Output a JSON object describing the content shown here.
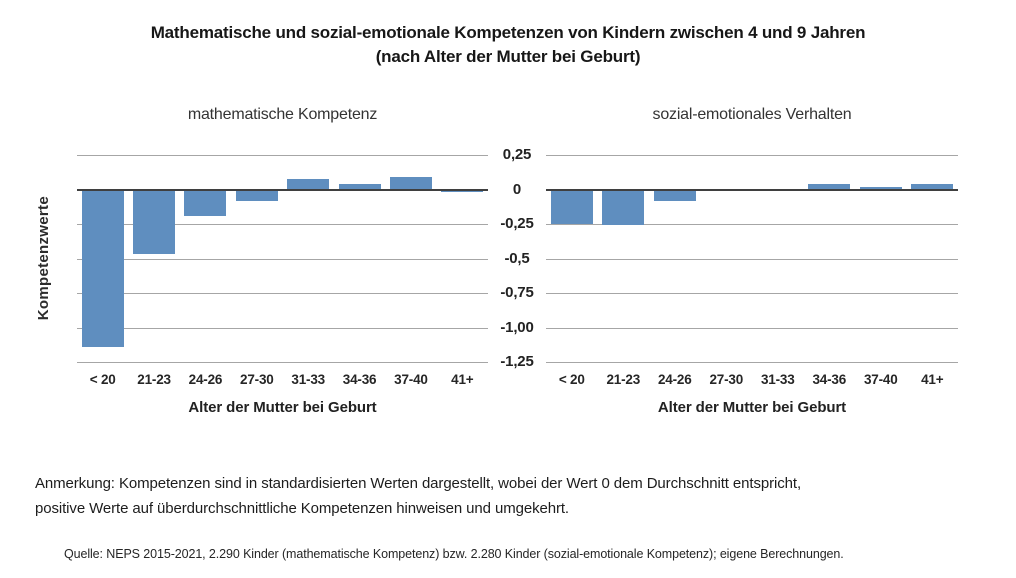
{
  "figure": {
    "title_line1": "Mathematische und sozial-emotionale Kompetenzen von Kindern zwischen 4 und 9 Jahren",
    "title_line2": "(nach Alter der Mutter bei Geburt)"
  },
  "colors": {
    "bar": "#5f8ebf",
    "zero_line": "#3f3f3f",
    "gridline": "#a6a6a6"
  },
  "y_axis": {
    "label": "Kompetenzwerte",
    "ticks": [
      {
        "label": "0,25",
        "value": 0.25
      },
      {
        "label": "0",
        "value": 0
      },
      {
        "label": "-0,25",
        "value": -0.25
      },
      {
        "label": "-0,5",
        "value": -0.5
      },
      {
        "label": "-0,75",
        "value": -0.75
      },
      {
        "label": "-1,00",
        "value": -1.0
      },
      {
        "label": "-1,25",
        "value": -1.25
      }
    ],
    "ylim": [
      -1.25,
      0.25
    ]
  },
  "x_axis": {
    "label": "Alter der Mutter bei Geburt",
    "categories": [
      "< 20",
      "21-23",
      "24-26",
      "27-30",
      "31-33",
      "34-36",
      "37-40",
      "41+"
    ]
  },
  "chart_data": [
    {
      "type": "bar",
      "title": "mathematische Kompetenz",
      "categories": [
        "< 20",
        "21-23",
        "24-26",
        "27-30",
        "31-33",
        "34-36",
        "37-40",
        "41+"
      ],
      "values": [
        -1.14,
        -0.47,
        -0.19,
        -0.08,
        0.08,
        0.04,
        0.09,
        -0.02
      ],
      "xlabel": "Alter der Mutter bei Geburt",
      "ylabel": "Kompetenzwerte",
      "ylim": [
        -1.25,
        0.25
      ],
      "grid": true,
      "legend": "none"
    },
    {
      "type": "bar",
      "title": "sozial-emotionales Verhalten",
      "categories": [
        "< 20",
        "21-23",
        "24-26",
        "27-30",
        "31-33",
        "34-36",
        "37-40",
        "41+"
      ],
      "values": [
        -0.25,
        -0.26,
        -0.08,
        -0.01,
        -0.01,
        0.04,
        0.02,
        0.04
      ],
      "xlabel": "Alter der Mutter bei Geburt",
      "ylabel": "Kompetenzwerte",
      "ylim": [
        -1.25,
        0.25
      ],
      "grid": true,
      "legend": "none"
    }
  ],
  "notes": {
    "annotation_line1": "Anmerkung: Kompetenzen sind in standardisierten Werten dargestellt, wobei der Wert 0 dem Durchschnitt entspricht,",
    "annotation_line2": "positive Werte auf überdurchschnittliche Kompetenzen hinweisen und umgekehrt.",
    "source": "Quelle: NEPS 2015-2021, 2.290 Kinder (mathematische Kompetenz) bzw. 2.280 Kinder (sozial-emotionale Kompetenz); eigene Berechnungen."
  }
}
